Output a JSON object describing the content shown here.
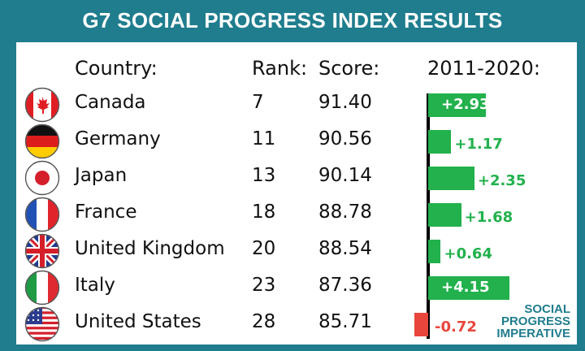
{
  "title": "G7 SOCIAL PROGRESS INDEX RESULTS",
  "headers": {
    "country": "Country:",
    "rank": "Rank:",
    "score": "Score:",
    "change": "2011-2020:"
  },
  "brand": [
    "SOCIAL",
    "PROGRESS",
    "IMPERATIVE"
  ],
  "colors": {
    "frame": "#1f7d8e",
    "positive": "#22b14c",
    "negative": "#e8453c",
    "text": "#111111"
  },
  "chart_data": {
    "type": "bar",
    "title": "G7 SOCIAL PROGRESS INDEX RESULTS",
    "categories": [
      "Canada",
      "Germany",
      "Japan",
      "France",
      "United Kingdom",
      "Italy",
      "United States"
    ],
    "series": [
      {
        "name": "2011-2020:",
        "values": [
          2.93,
          1.17,
          2.35,
          1.68,
          0.64,
          4.15,
          -0.72
        ]
      }
    ],
    "value_labels": [
      "+2.93",
      "+1.17",
      "+2.35",
      "+1.68",
      "+0.64",
      "+4.15",
      "-0.72"
    ],
    "rank": [
      "7",
      "11",
      "13",
      "18",
      "20",
      "23",
      "28"
    ],
    "score": [
      "91.40",
      "90.56",
      "90.14",
      "88.78",
      "88.54",
      "87.36",
      "85.71"
    ],
    "flags": [
      "canada-flag-icon",
      "germany-flag-icon",
      "japan-flag-icon",
      "france-flag-icon",
      "uk-flag-icon",
      "italy-flag-icon",
      "usa-flag-icon"
    ],
    "grid": false,
    "orientation": "horizontal"
  }
}
